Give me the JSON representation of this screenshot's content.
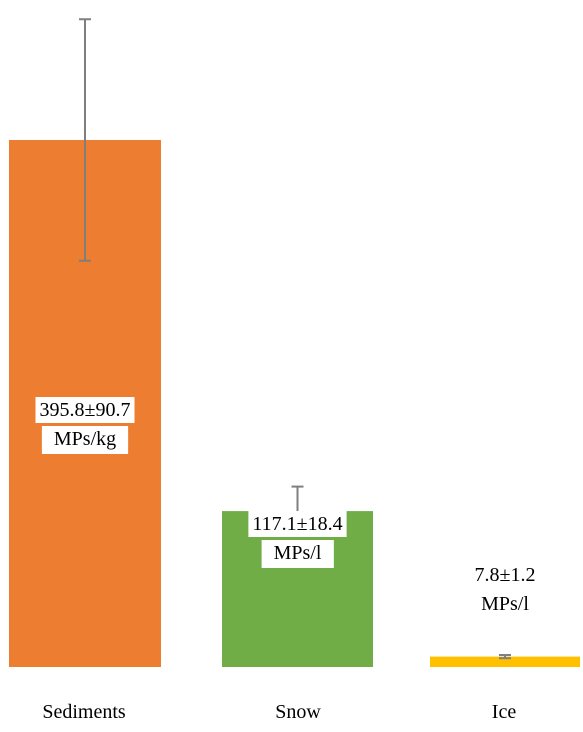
{
  "chart_data": {
    "type": "bar",
    "categories": [
      "Sediments",
      "Snow",
      "Ice"
    ],
    "values": [
      395.8,
      117.1,
      7.8
    ],
    "errors": [
      90.7,
      18.4,
      1.2
    ],
    "units": [
      "MPs/kg",
      "MPs/l",
      "MPs/l"
    ],
    "data_labels": [
      {
        "value_text": "395.8±90.7",
        "unit_text": "MPs/kg"
      },
      {
        "value_text": "117.1±18.4",
        "unit_text": "MPs/l"
      },
      {
        "value_text": "7.8±1.2",
        "unit_text": "MPs/l"
      }
    ],
    "colors": [
      "#ED7D31",
      "#70AD47",
      "#FFC000"
    ],
    "error_bar_color": "#7F7F7F",
    "grid": false,
    "axes_visible": false
  }
}
